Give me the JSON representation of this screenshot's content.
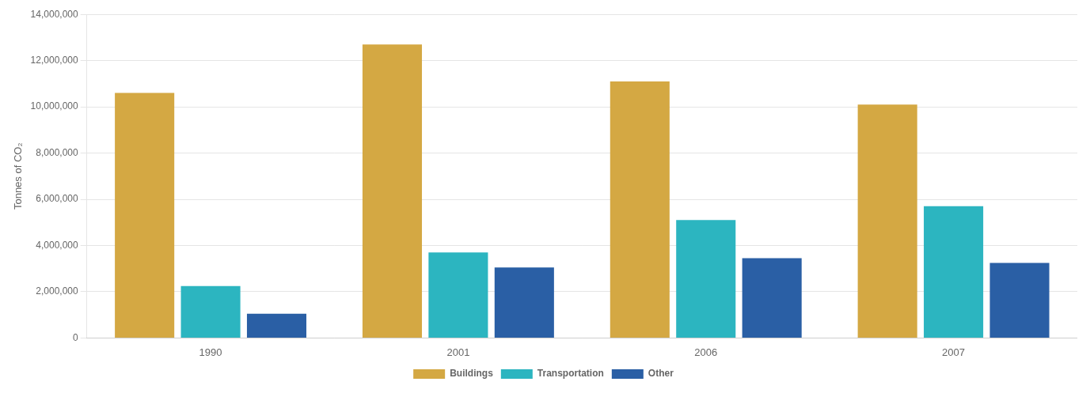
{
  "chart_data": {
    "type": "bar",
    "categories": [
      "1990",
      "2001",
      "2006",
      "2007"
    ],
    "series": [
      {
        "name": "Buildings",
        "color": "#D4A843",
        "values": [
          10600000,
          12700000,
          11100000,
          10100000
        ]
      },
      {
        "name": "Transportation",
        "color": "#2CB5C0",
        "values": [
          2250000,
          3700000,
          5100000,
          5700000
        ]
      },
      {
        "name": "Other",
        "color": "#2A5FA5",
        "values": [
          1050000,
          3050000,
          3450000,
          3250000
        ]
      }
    ],
    "ylabel": "Tonnes of CO₂",
    "ylim": [
      0,
      14000000
    ],
    "yticks": [
      0,
      {
        "value": 2000000,
        "label": "2,000,000"
      },
      {
        "value": 4000000,
        "label": "4,000,000"
      },
      {
        "value": 6000000,
        "label": "6,000,000"
      },
      {
        "value": 8000000,
        "label": "8,000,000"
      },
      {
        "value": 10000000,
        "label": "10,000,000"
      },
      {
        "value": 12000000,
        "label": "12,000,000"
      },
      {
        "value": 14000000,
        "label": "14,000,000"
      }
    ],
    "grid": true,
    "legend": "bottom"
  }
}
